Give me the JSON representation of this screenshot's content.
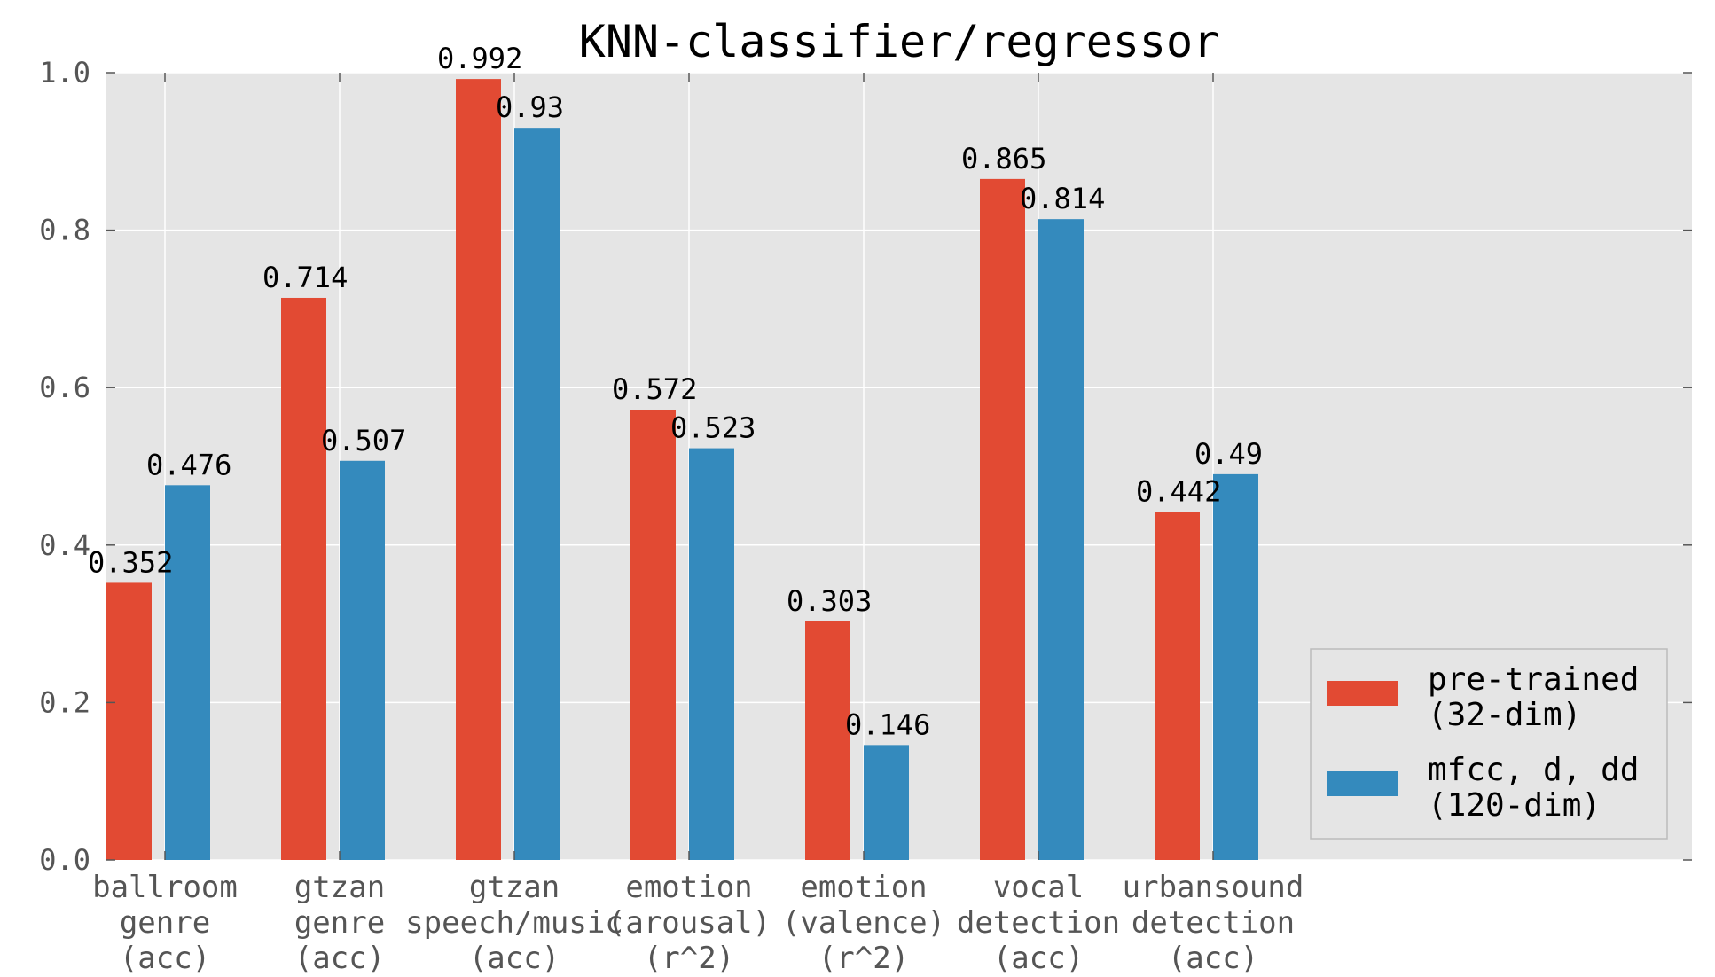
{
  "chart_data": {
    "type": "bar",
    "title": "KNN-classifier/regressor",
    "xlabel": "",
    "ylabel": "",
    "ylim": [
      0,
      1.0
    ],
    "yticks": [
      "0.0",
      "0.2",
      "0.4",
      "0.6",
      "0.8",
      "1.0"
    ],
    "grid": true,
    "legend_position": "lower-right",
    "categories": [
      [
        "ballroom",
        "genre",
        "(acc)"
      ],
      [
        "gtzan",
        "genre",
        "(acc)"
      ],
      [
        "gtzan",
        "speech/music",
        "(acc)"
      ],
      [
        "emotion",
        "(arousal)",
        "(r^2)"
      ],
      [
        "emotion",
        "(valence)",
        "(r^2)"
      ],
      [
        "vocal",
        "detection",
        "(acc)"
      ],
      [
        "urbansound",
        "detection",
        "(acc)"
      ]
    ],
    "series": [
      {
        "name": [
          "pre-trained",
          "(32-dim)"
        ],
        "color": "#E24A33",
        "values": [
          0.352,
          0.714,
          0.992,
          0.572,
          0.303,
          0.865,
          0.442
        ],
        "labels": [
          "0.352",
          "0.714",
          "0.992",
          "0.572",
          "0.303",
          "0.865",
          "0.442"
        ]
      },
      {
        "name": [
          "mfcc, d, dd",
          "(120-dim)"
        ],
        "color": "#348ABD",
        "values": [
          0.476,
          0.507,
          0.93,
          0.523,
          0.146,
          0.814,
          0.49
        ],
        "labels": [
          "0.476",
          "0.507",
          "0.93",
          "0.523",
          "0.146",
          "0.814",
          "0.49"
        ]
      }
    ],
    "colors": {
      "plot_background": "#E5E5E5",
      "grid": "#FFFFFF"
    }
  }
}
